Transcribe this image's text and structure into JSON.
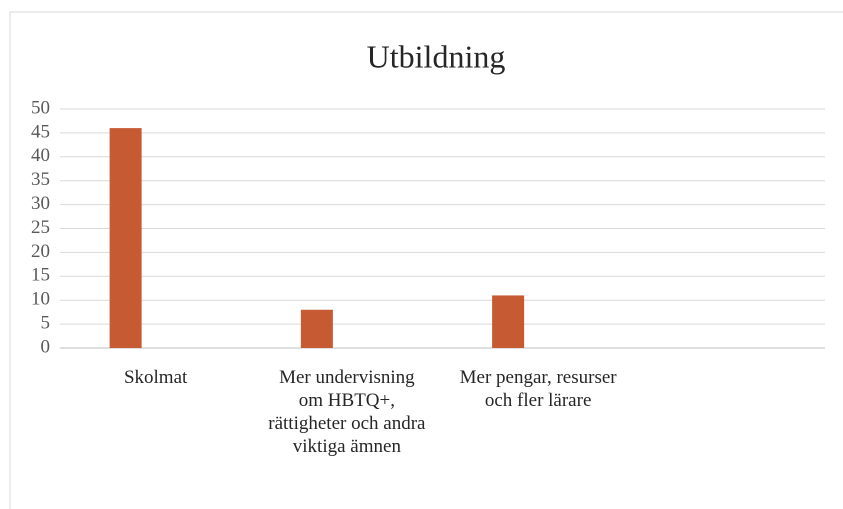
{
  "chart_data": {
    "type": "bar",
    "title": "Utbildning",
    "categories": [
      "Skolmat",
      "Mer undervisning om HBTQ+, rättigheter och andra viktiga ämnen",
      "Mer pengar, resurser och fler lärare",
      null
    ],
    "values": [
      46,
      8,
      11,
      null
    ],
    "color": "#c55a33",
    "ylim": [
      0,
      50
    ],
    "yticks": [
      0,
      5,
      10,
      15,
      20,
      25,
      30,
      35,
      40,
      45,
      50
    ],
    "grid": true
  }
}
